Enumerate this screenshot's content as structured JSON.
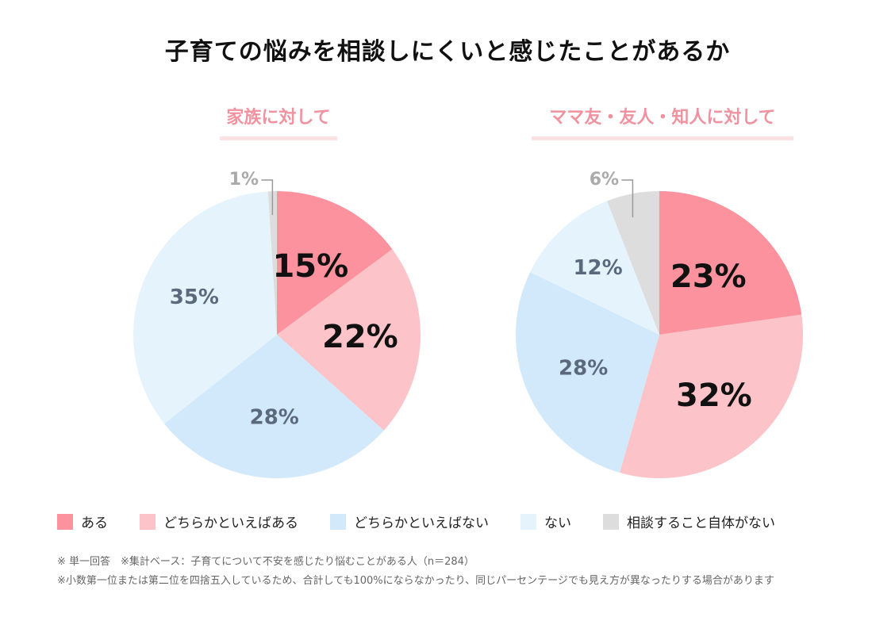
{
  "title": "子育ての悩みを相談しにくいと感じたことがあるか",
  "chart_data": [
    {
      "type": "pie",
      "title": "家族に対して",
      "categories": [
        "ある",
        "どちらかといえばある",
        "どちらかといえばない",
        "ない",
        "相談すること自体がない"
      ],
      "values": [
        15,
        22,
        28,
        35,
        1
      ],
      "labels": [
        "15%",
        "22%",
        "28%",
        "35%",
        "1%"
      ]
    },
    {
      "type": "pie",
      "title": "ママ友・友人・知人に対して",
      "categories": [
        "ある",
        "どちらかといえばある",
        "どちらかといえばない",
        "ない",
        "相談すること自体がない"
      ],
      "values": [
        23,
        32,
        28,
        12,
        6
      ],
      "labels": [
        "23%",
        "32%",
        "28%",
        "12%",
        "6%"
      ]
    }
  ],
  "legend": [
    {
      "label": "ある",
      "color": "#fc929e"
    },
    {
      "label": "どちらかといえばある",
      "color": "#fcc4c9"
    },
    {
      "label": "どちらかといえばない",
      "color": "#d2e9fb"
    },
    {
      "label": "ない",
      "color": "#e5f3fd"
    },
    {
      "label": "相談すること自体がない",
      "color": "#dddddd"
    }
  ],
  "notes": {
    "line1": "※ 単一回答　※集計ベース：子育てについて不安を感じたり悩むことがある人（n＝284）",
    "line2": "※小数第一位または第二位を四捨五入しているため、合計しても100%にならなかったり、同じパーセンテージでも見え方が異なったりする場合があります"
  }
}
